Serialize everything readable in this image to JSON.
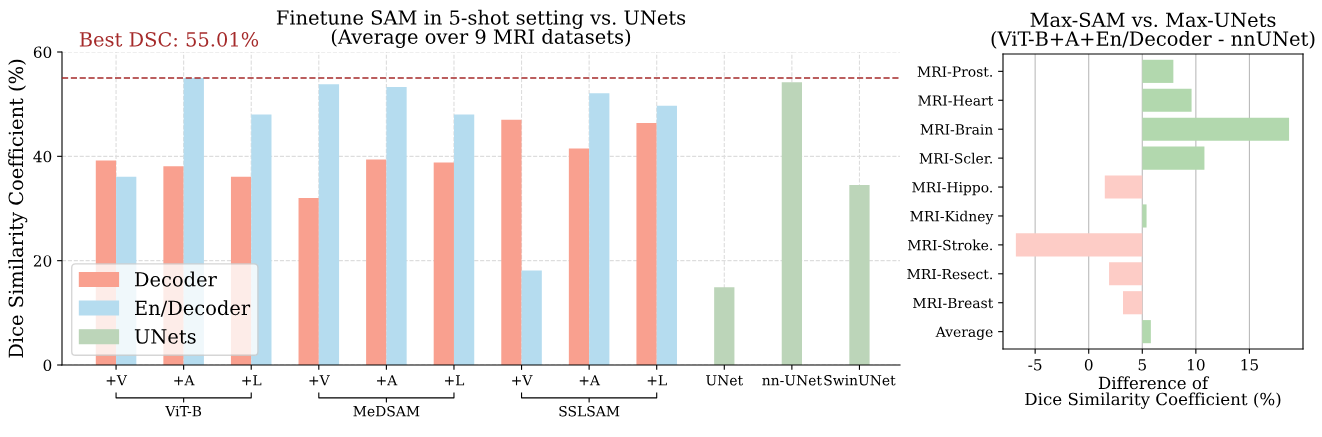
{
  "chart_data": [
    {
      "type": "bar",
      "title": "Finetune SAM in 5-shot setting vs. UNets\n(Average over 9 MRI datasets)",
      "ylabel": "Dice Similarity Coefficient (%)",
      "categories": [
        "+V",
        "+A",
        "+L",
        "+V",
        "+A",
        "+L",
        "+V",
        "+A",
        "+L",
        "UNet",
        "nn-UNet",
        "SwinUNet"
      ],
      "series": [
        {
          "name": "Decoder",
          "color": "#f9a08f",
          "values": [
            39.2,
            38.1,
            36.1,
            32.0,
            39.4,
            38.8,
            47.0,
            41.5,
            46.4,
            null,
            null,
            null
          ]
        },
        {
          "name": "En/Decoder",
          "color": "#b5dcef",
          "values": [
            36.1,
            55.0,
            48.0,
            53.8,
            53.3,
            48.0,
            18.1,
            52.1,
            49.7,
            null,
            null,
            null
          ]
        },
        {
          "name": "UNets",
          "color": "#bcd5b9",
          "values": [
            null,
            null,
            null,
            null,
            null,
            null,
            null,
            null,
            null,
            14.9,
            54.2,
            34.5
          ]
        }
      ],
      "ylim": [
        0,
        60
      ],
      "yticks": [
        0,
        20,
        40,
        60
      ],
      "grid": true,
      "legend": "bottom left",
      "ref_lines": [
        {
          "axis": "y",
          "value": 55.01,
          "label": "Best DSC: 55.01%",
          "color": "#a52a2a",
          "line_style": "dashed"
        }
      ],
      "annotations": [
        "ViT-B",
        "MeDSAM",
        "SSLSAM"
      ]
    },
    {
      "type": "bar",
      "orientation": "horizontal",
      "title": "Max-SAM vs. Max-UNets\n(ViT-B+A+En/Decoder - nnUNet)",
      "xlabel": "Difference of\nDice Similarity Coefficient (%)",
      "categories": [
        "MRI-Prost.",
        "MRI-Heart",
        "MRI-Brain",
        "MRI-Scler.",
        "MRI-Hippo.",
        "MRI-Kidney",
        "MRI-Stroke.",
        "MRI-Resect.",
        "MRI-Breast",
        "Average"
      ],
      "values": [
        2.9,
        4.6,
        13.7,
        5.8,
        -3.5,
        0.4,
        -11.8,
        -3.1,
        -1.8,
        0.8
      ],
      "base": [
        5,
        5,
        5,
        5,
        5,
        5,
        5,
        5,
        5,
        5
      ],
      "colors": [
        "#b2d8ae",
        "#b2d8ae",
        "#b2d8ae",
        "#b2d8ae",
        "#fdccc6",
        "#b2d8ae",
        "#fdccc6",
        "#fdccc6",
        "#fdccc6",
        "#b2d8ae"
      ],
      "xlim": [
        -8,
        20
      ],
      "xticks": [
        -5,
        0,
        5,
        10,
        15
      ],
      "grid": "x"
    }
  ]
}
